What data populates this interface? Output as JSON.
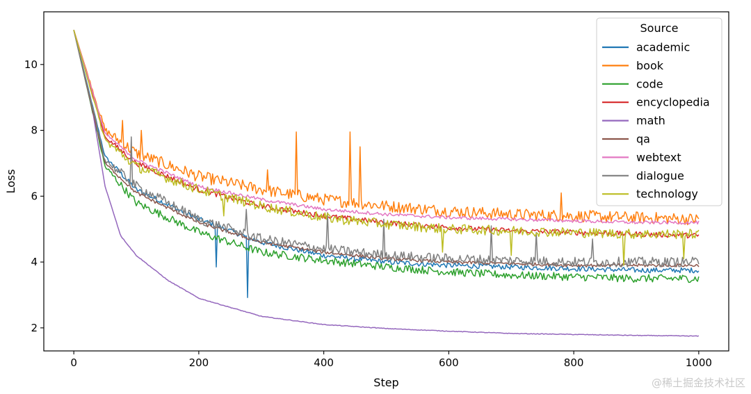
{
  "chart_data": {
    "type": "line",
    "title": "",
    "xlabel": "Step",
    "ylabel": "Loss",
    "xlim": [
      -48,
      1048
    ],
    "ylim": [
      1.3,
      11.6
    ],
    "xticks": [
      0,
      200,
      400,
      600,
      800,
      1000
    ],
    "yticks": [
      2,
      4,
      6,
      8,
      10
    ],
    "grid": false,
    "legend_title": "Source",
    "legend_position": "top-right",
    "start_loss": 11.05,
    "series": [
      {
        "name": "academic",
        "color": "#1f77b4",
        "x": [
          50,
          100,
          200,
          300,
          400,
          500,
          600,
          700,
          800,
          900,
          1000
        ],
        "values": [
          7.2,
          6.2,
          5.3,
          4.6,
          4.2,
          4.0,
          3.9,
          3.85,
          3.8,
          3.75,
          3.75
        ],
        "noise": 0.08,
        "spikes": [
          [
            228,
            3.85
          ],
          [
            277,
            2.92
          ]
        ]
      },
      {
        "name": "book",
        "color": "#ff7f0e",
        "x": [
          50,
          100,
          200,
          300,
          400,
          500,
          600,
          700,
          800,
          900,
          1000
        ],
        "values": [
          8.0,
          7.3,
          6.6,
          6.2,
          5.9,
          5.7,
          5.55,
          5.45,
          5.4,
          5.35,
          5.3
        ],
        "noise": 0.18,
        "spikes": [
          [
            77,
            8.3
          ],
          [
            108,
            8.0
          ],
          [
            356,
            7.95
          ],
          [
            442,
            7.95
          ],
          [
            458,
            7.5
          ],
          [
            310,
            6.8
          ],
          [
            780,
            6.1
          ]
        ]
      },
      {
        "name": "code",
        "color": "#2ca02c",
        "x": [
          50,
          100,
          200,
          300,
          400,
          500,
          600,
          700,
          800,
          900,
          1000
        ],
        "values": [
          6.9,
          5.8,
          4.9,
          4.3,
          4.05,
          3.85,
          3.7,
          3.6,
          3.55,
          3.5,
          3.5
        ],
        "noise": 0.12,
        "spikes": []
      },
      {
        "name": "encyclopedia",
        "color": "#d62728",
        "x": [
          50,
          100,
          200,
          300,
          400,
          500,
          600,
          700,
          800,
          900,
          1000
        ],
        "values": [
          7.8,
          7.0,
          6.2,
          5.7,
          5.4,
          5.2,
          5.05,
          4.95,
          4.9,
          4.85,
          4.8
        ],
        "noise": 0.08,
        "spikes": []
      },
      {
        "name": "math",
        "color": "#9467bd",
        "x": [
          30,
          50,
          75,
          100,
          150,
          200,
          300,
          400,
          500,
          600,
          700,
          800,
          900,
          1000
        ],
        "values": [
          8.6,
          6.3,
          4.8,
          4.2,
          3.45,
          2.9,
          2.35,
          2.1,
          1.98,
          1.9,
          1.83,
          1.8,
          1.77,
          1.75
        ],
        "noise": 0.01,
        "spikes": []
      },
      {
        "name": "qa",
        "color": "#8c564b",
        "x": [
          50,
          100,
          200,
          300,
          400,
          500,
          600,
          700,
          800,
          900,
          1000
        ],
        "values": [
          7.0,
          6.1,
          5.2,
          4.6,
          4.3,
          4.1,
          4.0,
          3.95,
          3.9,
          3.9,
          3.9
        ],
        "noise": 0.05,
        "spikes": []
      },
      {
        "name": "webtext",
        "color": "#e377c2",
        "x": [
          50,
          100,
          200,
          300,
          400,
          500,
          600,
          700,
          800,
          900,
          1000
        ],
        "values": [
          7.9,
          7.1,
          6.3,
          5.9,
          5.6,
          5.45,
          5.35,
          5.3,
          5.25,
          5.2,
          5.2
        ],
        "noise": 0.05,
        "spikes": []
      },
      {
        "name": "dialogue",
        "color": "#7f7f7f",
        "x": [
          50,
          100,
          200,
          300,
          400,
          500,
          600,
          700,
          800,
          900,
          1000
        ],
        "values": [
          7.1,
          6.3,
          5.3,
          4.7,
          4.4,
          4.2,
          4.1,
          4.05,
          4.0,
          4.0,
          4.0
        ],
        "noise": 0.15,
        "spikes": [
          [
            92,
            7.8
          ],
          [
            275,
            5.6
          ],
          [
            405,
            5.5
          ],
          [
            495,
            5.3
          ],
          [
            668,
            5.1
          ],
          [
            740,
            4.9
          ],
          [
            830,
            4.7
          ]
        ]
      },
      {
        "name": "technology",
        "color": "#bcbd22",
        "x": [
          50,
          100,
          200,
          300,
          400,
          500,
          600,
          700,
          800,
          900,
          1000
        ],
        "values": [
          7.7,
          6.9,
          6.2,
          5.7,
          5.35,
          5.15,
          5.0,
          4.95,
          4.9,
          4.85,
          4.85
        ],
        "noise": 0.15,
        "spikes": [
          [
            240,
            5.4
          ],
          [
            590,
            4.3
          ],
          [
            700,
            4.2
          ],
          [
            880,
            3.9
          ],
          [
            975,
            4.1
          ]
        ]
      }
    ]
  },
  "watermark": "@稀土掘金技术社区"
}
